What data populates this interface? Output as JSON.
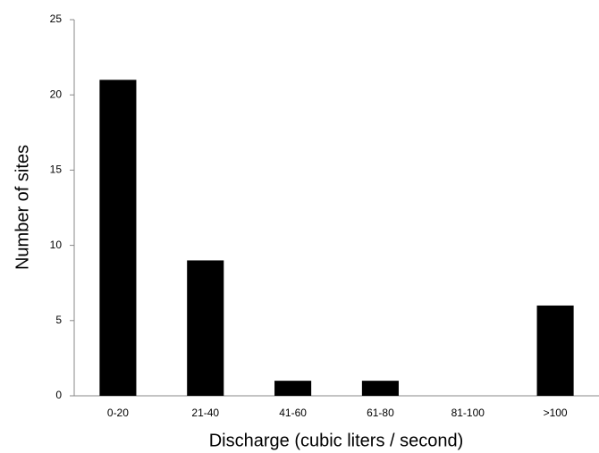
{
  "chart_data": {
    "type": "bar",
    "x_label": "Discharge (cubic liters / second)",
    "y_label": "Number of sites",
    "categories": [
      "0-20",
      "21-40",
      "41-60",
      "61-80",
      "81-100",
      ">100"
    ],
    "values": [
      21,
      9,
      1,
      1,
      0,
      6
    ],
    "color": "#000000",
    "ylim": [
      0,
      25
    ],
    "yticks": [
      0,
      5,
      10,
      15,
      20,
      25
    ],
    "grid": false
  }
}
